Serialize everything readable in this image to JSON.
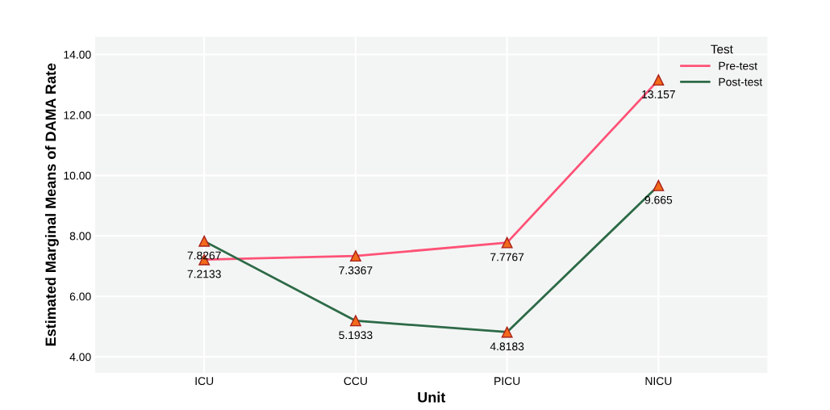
{
  "chart_data": {
    "type": "line",
    "xlabel": "Unit",
    "ylabel": "Estimated Marginal Means of DAMA Rate",
    "legend_title": "Test",
    "categories": [
      "ICU",
      "CCU",
      "PICU",
      "NICU"
    ],
    "series": [
      {
        "name": "Pre-test",
        "color": "#ff5277",
        "values": [
          7.2133,
          7.3367,
          7.7767,
          13.157
        ]
      },
      {
        "name": "Post-test",
        "color": "#2d6a47",
        "values": [
          7.8267,
          5.1933,
          4.8183,
          9.665
        ]
      }
    ],
    "ylim": [
      3.47,
      14.59
    ],
    "yticks": [
      {
        "value": 4,
        "label": "4.00"
      },
      {
        "value": 6,
        "label": "6.00"
      },
      {
        "value": 8,
        "label": "8.00"
      },
      {
        "value": 10,
        "label": "10.00"
      },
      {
        "value": 12,
        "label": "12.00"
      },
      {
        "value": 14,
        "label": "14.00"
      }
    ],
    "grid": true,
    "legend": "top right",
    "marker": "triangle",
    "data_labels": true
  }
}
